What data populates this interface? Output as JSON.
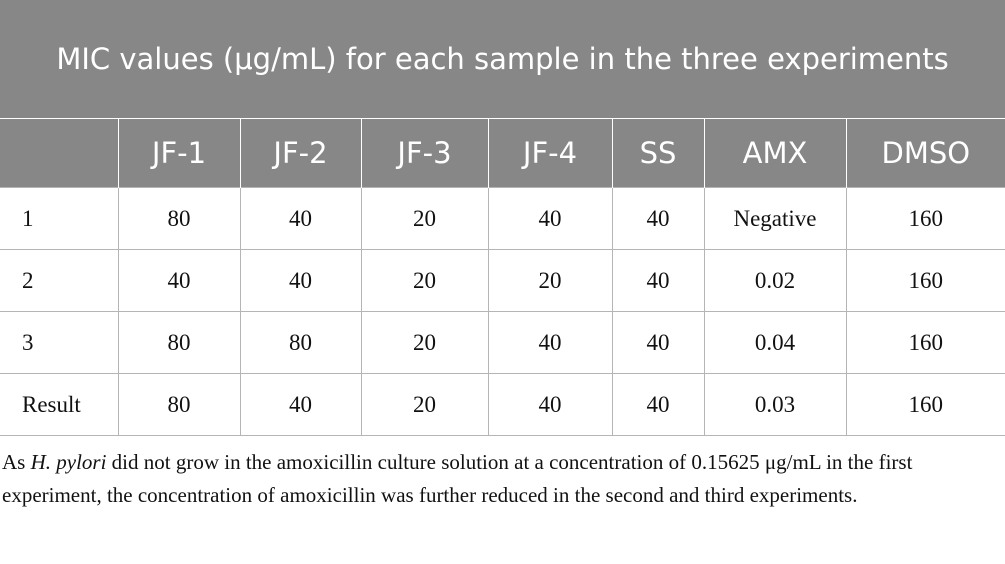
{
  "table": {
    "title": "MIC values (μg/mL) for each sample in the three experiments",
    "header": [
      "JF-1",
      "JF-2",
      "JF-3",
      "JF-4",
      "SS",
      "AMX",
      "DMSO"
    ],
    "rows": [
      [
        "1",
        "80",
        "40",
        "20",
        "40",
        "40",
        "Negative",
        "160"
      ],
      [
        "2",
        "40",
        "40",
        "20",
        "20",
        "40",
        "0.02",
        "160"
      ],
      [
        "3",
        "80",
        "80",
        "20",
        "40",
        "40",
        "0.04",
        "160"
      ],
      [
        "Result",
        "80",
        "40",
        "20",
        "40",
        "40",
        "0.03",
        "160"
      ]
    ]
  },
  "footnote": {
    "before": "As ",
    "italic": "H. pylori",
    "after": " did not grow in the amoxicillin culture solution at a concentration of 0.15625 μg/mL in the first experiment, the concentration of amoxicillin was further reduced in the second and third experiments."
  }
}
